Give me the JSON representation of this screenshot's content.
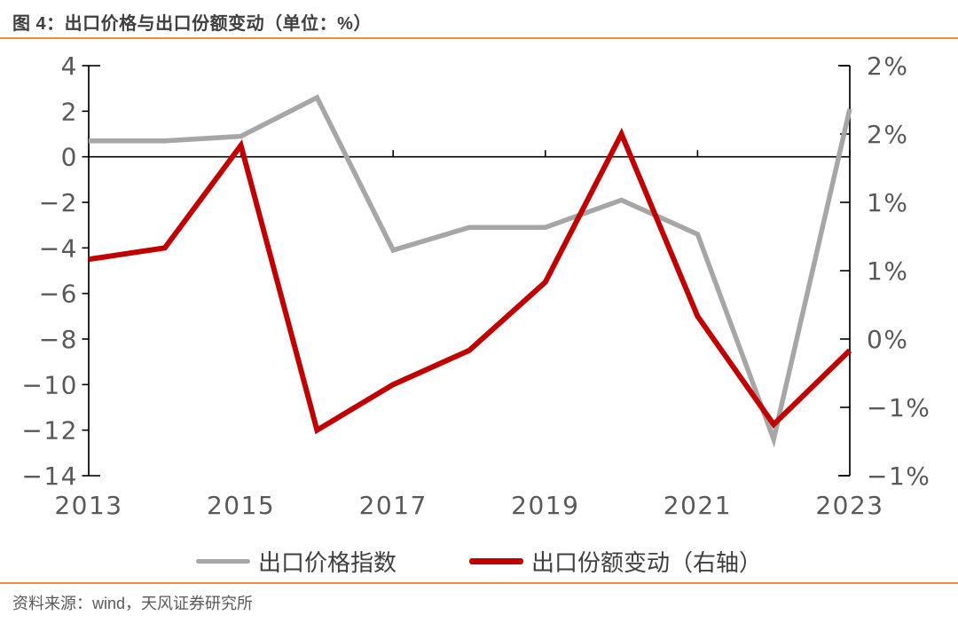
{
  "header": {
    "title": "图 4：出口价格与出口份额变动（单位：%）"
  },
  "footer": {
    "source": "资料来源：wind，天风证券研究所"
  },
  "colors": {
    "accent_orange": "#F08A3C",
    "gray_line": "#A6A6A6",
    "red_line": "#C00000",
    "axis_line": "#000000",
    "axis_text": "#595959",
    "title_text": "#3F3F3F",
    "legend_text": "#3F3F3F",
    "source_text": "#595959",
    "background": "#FFFFFF"
  },
  "legend": {
    "items": [
      {
        "label": "出口价格指数",
        "color": "#A6A6A6"
      },
      {
        "label": "出口份额变动（右轴）",
        "color": "#C00000"
      }
    ]
  },
  "chart_data": {
    "type": "line",
    "title": "图 4：出口价格与出口份额变动（单位：%）",
    "x": [
      2013,
      2014,
      2015,
      2016,
      2017,
      2018,
      2019,
      2020,
      2021,
      2022,
      2023
    ],
    "x_tick_values": [
      2013,
      2015,
      2017,
      2019,
      2021,
      2023
    ],
    "x_tick_labels": [
      "2013",
      "2015",
      "2017",
      "2019",
      "2021",
      "2023"
    ],
    "series": [
      {
        "name": "出口价格指数",
        "axis": "left",
        "color": "#A6A6A6",
        "stroke_width": 5.5,
        "values": [
          0.7,
          0.7,
          0.9,
          2.6,
          -4.1,
          -3.1,
          -3.1,
          -1.9,
          -3.4,
          -12.4,
          2.1
        ]
      },
      {
        "name": "出口份额变动（右轴）",
        "axis": "right",
        "color": "#C00000",
        "stroke_width": 6,
        "values": [
          0.7,
          0.8,
          1.7,
          -0.8,
          -0.4,
          -0.1,
          0.5,
          1.8,
          0.2,
          -0.75,
          -0.1
        ]
      }
    ],
    "left_axis": {
      "max": 4,
      "min": -14,
      "tick_values": [
        4,
        2,
        0,
        -2,
        -4,
        -6,
        -8,
        -10,
        -12,
        -14
      ],
      "tick_labels": [
        "4",
        "2",
        "0",
        "−2",
        "−4",
        "−6",
        "−8",
        "−10",
        "−12",
        "−14"
      ]
    },
    "right_axis": {
      "max": 2.4,
      "min": -1.2,
      "tick_values": [
        2.4,
        1.8,
        1.2,
        0.6,
        0,
        -0.6,
        -1.2
      ],
      "tick_labels": [
        "2%",
        "2%",
        "1%",
        "1%",
        "0%",
        "−1%",
        "−1%"
      ]
    },
    "zero_line": true,
    "grid": false,
    "legend_position": "bottom"
  }
}
